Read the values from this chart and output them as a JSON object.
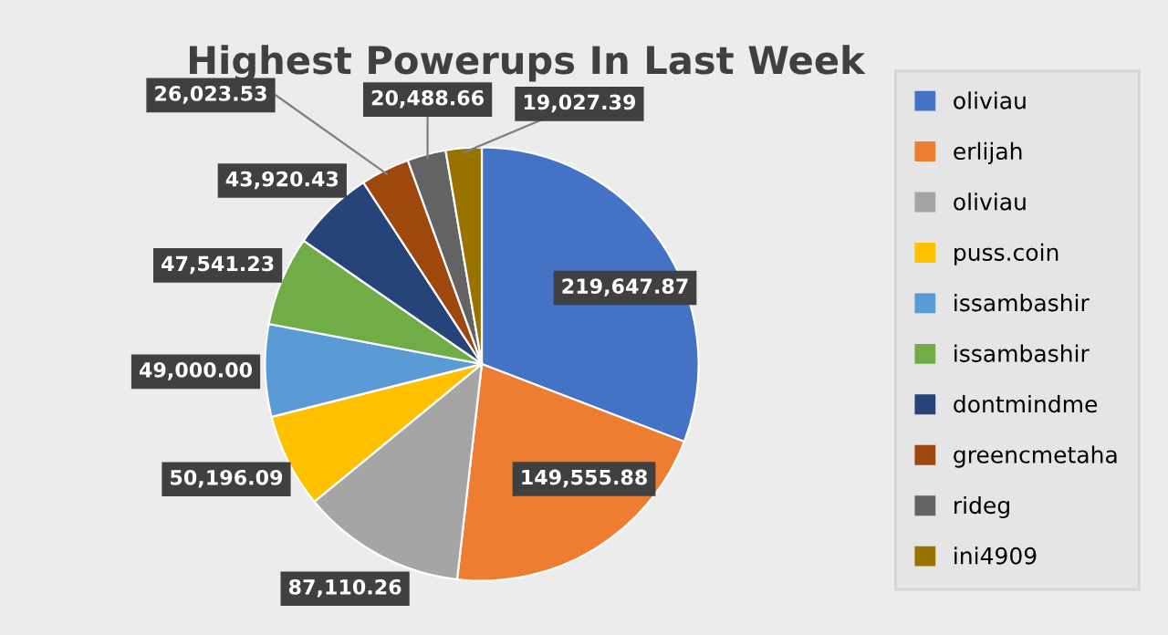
{
  "chart_data": {
    "type": "pie",
    "title": "Highest Powerups In Last Week",
    "categories": [
      "oliviau",
      "erlijah",
      "oliviau",
      "puss.coin",
      "issambashir",
      "issambashir",
      "dontmindme",
      "greencmetaha",
      "rideg",
      "ini4909"
    ],
    "values": [
      219647.87,
      149555.88,
      87110.26,
      50196.09,
      49000.0,
      47541.23,
      43920.43,
      26023.53,
      20488.66,
      19027.39
    ],
    "value_labels": [
      "219,647.87",
      "149,555.88",
      "87,110.26",
      "50,196.09",
      "49,000.00",
      "47,541.23",
      "43,920.43",
      "26,023.53",
      "20,488.66",
      "19,027.39"
    ],
    "colors": [
      "#4472c4",
      "#ed7d31",
      "#a5a5a5",
      "#ffc000",
      "#5b9bd5",
      "#70ad47",
      "#264478",
      "#9e480e",
      "#636363",
      "#997300"
    ],
    "legend": "right"
  }
}
